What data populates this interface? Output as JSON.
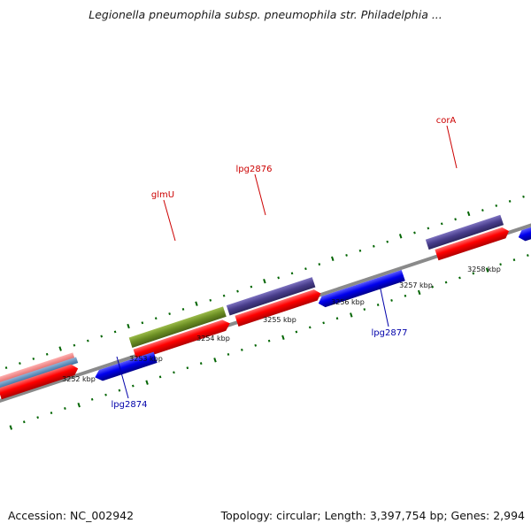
{
  "title": "Legionella pneumophila subsp. pneumophila str. Philadelphia ...",
  "footer": {
    "accession": "Accession: NC_002942",
    "summary": "Topology: circular; Length: 3,397,754 bp; Genes: 2,994"
  },
  "map": {
    "scale_labels": [
      "3252 kbp",
      "3253 kbp",
      "3254 kbp",
      "3255 kbp",
      "3256 kbp",
      "3257 kbp",
      "3258 kbp"
    ],
    "gene_labels": [
      {
        "id": "glmU",
        "text": "glmU",
        "strand": "forward",
        "color": "#cc0000"
      },
      {
        "id": "lpg2876",
        "text": "lpg2876",
        "strand": "forward",
        "color": "#cc0000"
      },
      {
        "id": "corA",
        "text": "corA",
        "strand": "forward",
        "color": "#cc0000"
      },
      {
        "id": "lpg2877",
        "text": "lpg2877",
        "strand": "reverse",
        "color": "#0000aa"
      },
      {
        "id": "lpg2874",
        "text": "lpg2874",
        "strand": "reverse",
        "color": "#0000aa"
      }
    ]
  },
  "colors": {
    "forward_gene": "#ff0000",
    "reverse_gene": "#0000ee",
    "cog_green": "#6b8e23",
    "cog_purple": "#483d8b",
    "ticks": "#006400",
    "backbone": "#888888"
  }
}
